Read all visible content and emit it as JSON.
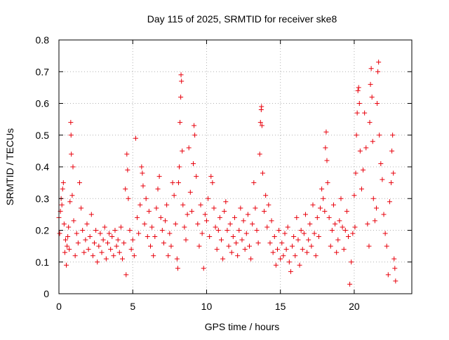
{
  "chart_data": {
    "type": "scatter",
    "title": "Day 115 of 2025, SRMTID for receiver ske8",
    "xlabel": "GPS time / hours",
    "ylabel": "SRMTID / TECUs",
    "xlim": [
      0,
      23.9
    ],
    "ylim": [
      0,
      0.8
    ],
    "xticks": [
      0,
      5,
      10,
      15,
      20
    ],
    "xtick_labels": [
      "0",
      "5",
      "10",
      "15",
      "20"
    ],
    "yticks": [
      0,
      0.1,
      0.2,
      0.3,
      0.4,
      0.5,
      0.6,
      0.7,
      0.8
    ],
    "ytick_labels": [
      "0",
      "0.1",
      "0.2",
      "0.3",
      "0.4",
      "0.5",
      "0.6",
      "0.7",
      "0.8"
    ],
    "grid": true,
    "marker": "+",
    "marker_color": "#e8000b",
    "series": [
      {
        "name": "SRMTID",
        "points": [
          [
            0.0,
            0.24
          ],
          [
            0.05,
            0.19
          ],
          [
            0.1,
            0.26
          ],
          [
            0.15,
            0.3
          ],
          [
            0.2,
            0.28
          ],
          [
            0.25,
            0.33
          ],
          [
            0.3,
            0.35
          ],
          [
            0.35,
            0.22
          ],
          [
            0.4,
            0.13
          ],
          [
            0.45,
            0.17
          ],
          [
            0.5,
            0.09
          ],
          [
            0.55,
            0.15
          ],
          [
            0.6,
            0.18
          ],
          [
            0.65,
            0.21
          ],
          [
            0.7,
            0.14
          ],
          [
            0.75,
            0.29
          ],
          [
            0.8,
            0.54
          ],
          [
            0.82,
            0.5
          ],
          [
            0.84,
            0.44
          ],
          [
            0.9,
            0.31
          ],
          [
            0.95,
            0.4
          ],
          [
            1.0,
            0.23
          ],
          [
            1.1,
            0.12
          ],
          [
            1.2,
            0.19
          ],
          [
            1.3,
            0.16
          ],
          [
            1.4,
            0.35
          ],
          [
            1.5,
            0.27
          ],
          [
            1.6,
            0.2
          ],
          [
            1.7,
            0.13
          ],
          [
            1.8,
            0.17
          ],
          [
            1.9,
            0.22
          ],
          [
            2.0,
            0.14
          ],
          [
            2.1,
            0.18
          ],
          [
            2.2,
            0.25
          ],
          [
            2.3,
            0.12
          ],
          [
            2.4,
            0.16
          ],
          [
            2.5,
            0.2
          ],
          [
            2.6,
            0.1
          ],
          [
            2.7,
            0.15
          ],
          [
            2.8,
            0.19
          ],
          [
            2.9,
            0.13
          ],
          [
            3.0,
            0.17
          ],
          [
            3.1,
            0.21
          ],
          [
            3.2,
            0.11
          ],
          [
            3.3,
            0.16
          ],
          [
            3.4,
            0.19
          ],
          [
            3.5,
            0.14
          ],
          [
            3.6,
            0.18
          ],
          [
            3.7,
            0.12
          ],
          [
            3.8,
            0.2
          ],
          [
            3.9,
            0.15
          ],
          [
            4.0,
            0.17
          ],
          [
            4.1,
            0.13
          ],
          [
            4.2,
            0.21
          ],
          [
            4.3,
            0.11
          ],
          [
            4.4,
            0.16
          ],
          [
            4.5,
            0.33
          ],
          [
            4.55,
            0.06
          ],
          [
            4.6,
            0.44
          ],
          [
            4.65,
            0.39
          ],
          [
            4.7,
            0.3
          ],
          [
            4.8,
            0.2
          ],
          [
            4.9,
            0.14
          ],
          [
            5.0,
            0.17
          ],
          [
            5.1,
            0.12
          ],
          [
            5.2,
            0.49
          ],
          [
            5.3,
            0.24
          ],
          [
            5.4,
            0.19
          ],
          [
            5.5,
            0.28
          ],
          [
            5.6,
            0.4
          ],
          [
            5.65,
            0.38
          ],
          [
            5.7,
            0.34
          ],
          [
            5.8,
            0.22
          ],
          [
            5.9,
            0.3
          ],
          [
            6.0,
            0.18
          ],
          [
            6.1,
            0.26
          ],
          [
            6.2,
            0.15
          ],
          [
            6.3,
            0.21
          ],
          [
            6.4,
            0.12
          ],
          [
            6.5,
            0.18
          ],
          [
            6.6,
            0.27
          ],
          [
            6.7,
            0.33
          ],
          [
            6.8,
            0.37
          ],
          [
            6.9,
            0.24
          ],
          [
            7.0,
            0.2
          ],
          [
            7.1,
            0.16
          ],
          [
            7.2,
            0.23
          ],
          [
            7.3,
            0.28
          ],
          [
            7.4,
            0.12
          ],
          [
            7.5,
            0.19
          ],
          [
            7.6,
            0.15
          ],
          [
            7.7,
            0.35
          ],
          [
            7.8,
            0.31
          ],
          [
            7.9,
            0.22
          ],
          [
            8.0,
            0.11
          ],
          [
            8.05,
            0.08
          ],
          [
            8.1,
            0.35
          ],
          [
            8.15,
            0.4
          ],
          [
            8.2,
            0.54
          ],
          [
            8.25,
            0.62
          ],
          [
            8.27,
            0.69
          ],
          [
            8.3,
            0.67
          ],
          [
            8.35,
            0.45
          ],
          [
            8.4,
            0.28
          ],
          [
            8.5,
            0.21
          ],
          [
            8.6,
            0.17
          ],
          [
            8.7,
            0.25
          ],
          [
            8.8,
            0.46
          ],
          [
            8.9,
            0.32
          ],
          [
            9.0,
            0.26
          ],
          [
            9.1,
            0.41
          ],
          [
            9.15,
            0.53
          ],
          [
            9.2,
            0.5
          ],
          [
            9.3,
            0.37
          ],
          [
            9.4,
            0.22
          ],
          [
            9.5,
            0.15
          ],
          [
            9.6,
            0.28
          ],
          [
            9.7,
            0.19
          ],
          [
            9.8,
            0.08
          ],
          [
            9.9,
            0.25
          ],
          [
            10.0,
            0.23
          ],
          [
            10.1,
            0.3
          ],
          [
            10.2,
            0.18
          ],
          [
            10.3,
            0.37
          ],
          [
            10.4,
            0.35
          ],
          [
            10.5,
            0.27
          ],
          [
            10.6,
            0.21
          ],
          [
            10.7,
            0.14
          ],
          [
            10.8,
            0.2
          ],
          [
            10.9,
            0.24
          ],
          [
            11.0,
            0.17
          ],
          [
            11.1,
            0.11
          ],
          [
            11.2,
            0.26
          ],
          [
            11.3,
            0.29
          ],
          [
            11.4,
            0.2
          ],
          [
            11.5,
            0.15
          ],
          [
            11.6,
            0.22
          ],
          [
            11.7,
            0.13
          ],
          [
            11.8,
            0.18
          ],
          [
            11.9,
            0.24
          ],
          [
            12.0,
            0.16
          ],
          [
            12.1,
            0.12
          ],
          [
            12.2,
            0.2
          ],
          [
            12.3,
            0.27
          ],
          [
            12.4,
            0.17
          ],
          [
            12.5,
            0.23
          ],
          [
            12.6,
            0.14
          ],
          [
            12.7,
            0.19
          ],
          [
            12.8,
            0.25
          ],
          [
            12.9,
            0.15
          ],
          [
            13.0,
            0.11
          ],
          [
            13.1,
            0.22
          ],
          [
            13.2,
            0.35
          ],
          [
            13.3,
            0.27
          ],
          [
            13.4,
            0.2
          ],
          [
            13.5,
            0.16
          ],
          [
            13.6,
            0.44
          ],
          [
            13.65,
            0.54
          ],
          [
            13.7,
            0.58
          ],
          [
            13.72,
            0.59
          ],
          [
            13.75,
            0.53
          ],
          [
            13.8,
            0.38
          ],
          [
            13.9,
            0.26
          ],
          [
            14.0,
            0.31
          ],
          [
            14.1,
            0.21
          ],
          [
            14.2,
            0.28
          ],
          [
            14.3,
            0.16
          ],
          [
            14.4,
            0.23
          ],
          [
            14.5,
            0.13
          ],
          [
            14.6,
            0.18
          ],
          [
            14.7,
            0.09
          ],
          [
            14.8,
            0.14
          ],
          [
            14.9,
            0.2
          ],
          [
            15.0,
            0.11
          ],
          [
            15.1,
            0.16
          ],
          [
            15.2,
            0.12
          ],
          [
            15.3,
            0.19
          ],
          [
            15.4,
            0.14
          ],
          [
            15.5,
            0.21
          ],
          [
            15.6,
            0.1
          ],
          [
            15.7,
            0.07
          ],
          [
            15.8,
            0.15
          ],
          [
            15.9,
            0.18
          ],
          [
            16.0,
            0.12
          ],
          [
            16.1,
            0.24
          ],
          [
            16.2,
            0.17
          ],
          [
            16.3,
            0.09
          ],
          [
            16.4,
            0.2
          ],
          [
            16.5,
            0.14
          ],
          [
            16.6,
            0.19
          ],
          [
            16.7,
            0.25
          ],
          [
            16.8,
            0.13
          ],
          [
            16.9,
            0.17
          ],
          [
            17.0,
            0.22
          ],
          [
            17.1,
            0.15
          ],
          [
            17.2,
            0.28
          ],
          [
            17.3,
            0.19
          ],
          [
            17.4,
            0.12
          ],
          [
            17.5,
            0.24
          ],
          [
            17.6,
            0.18
          ],
          [
            17.7,
            0.27
          ],
          [
            17.8,
            0.33
          ],
          [
            17.9,
            0.3
          ],
          [
            18.0,
            0.26
          ],
          [
            18.05,
            0.46
          ],
          [
            18.1,
            0.51
          ],
          [
            18.15,
            0.42
          ],
          [
            18.2,
            0.35
          ],
          [
            18.3,
            0.24
          ],
          [
            18.4,
            0.15
          ],
          [
            18.5,
            0.2
          ],
          [
            18.6,
            0.28
          ],
          [
            18.7,
            0.22
          ],
          [
            18.8,
            0.13
          ],
          [
            18.9,
            0.17
          ],
          [
            19.0,
            0.23
          ],
          [
            19.1,
            0.3
          ],
          [
            19.2,
            0.21
          ],
          [
            19.3,
            0.14
          ],
          [
            19.4,
            0.2
          ],
          [
            19.5,
            0.26
          ],
          [
            19.6,
            0.18
          ],
          [
            19.7,
            0.03
          ],
          [
            19.8,
            0.1
          ],
          [
            19.9,
            0.19
          ],
          [
            20.0,
            0.31
          ],
          [
            20.05,
            0.21
          ],
          [
            20.1,
            0.38
          ],
          [
            20.15,
            0.5
          ],
          [
            20.2,
            0.57
          ],
          [
            20.25,
            0.64
          ],
          [
            20.3,
            0.65
          ],
          [
            20.35,
            0.6
          ],
          [
            20.4,
            0.45
          ],
          [
            20.5,
            0.33
          ],
          [
            20.6,
            0.39
          ],
          [
            20.7,
            0.57
          ],
          [
            20.8,
            0.46
          ],
          [
            20.9,
            0.22
          ],
          [
            21.0,
            0.15
          ],
          [
            21.05,
            0.54
          ],
          [
            21.1,
            0.66
          ],
          [
            21.15,
            0.71
          ],
          [
            21.2,
            0.62
          ],
          [
            21.25,
            0.48
          ],
          [
            21.3,
            0.3
          ],
          [
            21.4,
            0.23
          ],
          [
            21.5,
            0.27
          ],
          [
            21.55,
            0.6
          ],
          [
            21.6,
            0.7
          ],
          [
            21.65,
            0.73
          ],
          [
            21.7,
            0.5
          ],
          [
            21.8,
            0.41
          ],
          [
            21.9,
            0.36
          ],
          [
            22.0,
            0.25
          ],
          [
            22.1,
            0.19
          ],
          [
            22.2,
            0.15
          ],
          [
            22.3,
            0.06
          ],
          [
            22.4,
            0.29
          ],
          [
            22.5,
            0.35
          ],
          [
            22.55,
            0.45
          ],
          [
            22.6,
            0.5
          ],
          [
            22.65,
            0.38
          ],
          [
            22.7,
            0.11
          ],
          [
            22.75,
            0.08
          ],
          [
            22.8,
            0.04
          ]
        ]
      }
    ]
  }
}
